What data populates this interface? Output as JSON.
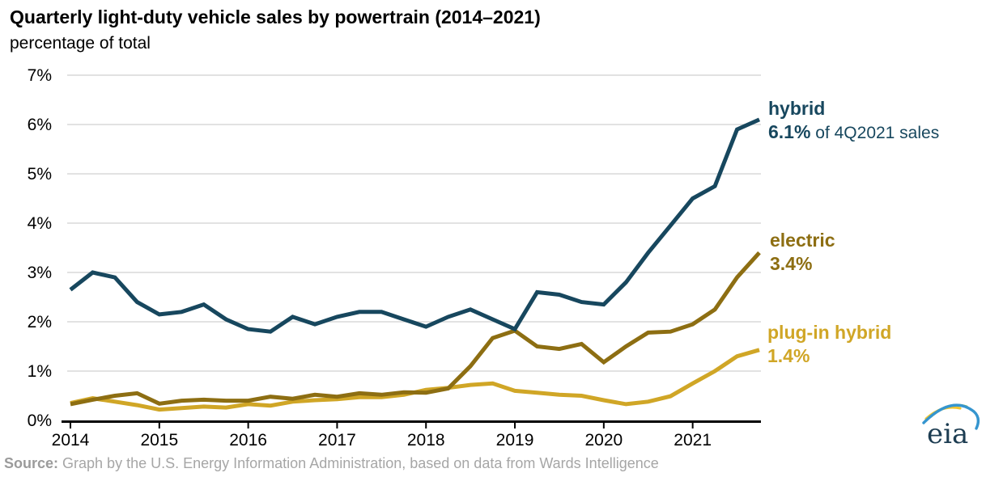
{
  "title": "Quarterly light-duty vehicle sales by powertrain (2014–2021)",
  "subtitle": "percentage of total",
  "source": {
    "label": "Source:",
    "text": " Graph by the U.S. Energy Information Administration, based on data from Wards Intelligence"
  },
  "logo": {
    "text": "eia"
  },
  "colors": {
    "hybrid": "#17475e",
    "electric": "#8d6e12",
    "plugin_hybrid": "#d0a626",
    "gridline": "#d9d9d9",
    "axis": "#000000",
    "source_text": "#a6a6a6"
  },
  "chart_data": {
    "type": "line",
    "title": "Quarterly light-duty vehicle sales by powertrain (2014–2021)",
    "ylabel": "percentage of total",
    "ylim": [
      0,
      7
    ],
    "grid": "horizontal",
    "legend_position": "right-of-lines",
    "x_unit": "quarter",
    "years": [
      "2014",
      "2015",
      "2016",
      "2017",
      "2018",
      "2019",
      "2020",
      "2021"
    ],
    "y_ticks": [
      "0%",
      "1%",
      "2%",
      "3%",
      "4%",
      "5%",
      "6%",
      "7%"
    ],
    "series": [
      {
        "name": "hybrid",
        "color": "#17475e",
        "annotation": {
          "name": "hybrid",
          "value": "6.1%",
          "suffix": " of 4Q2021 sales"
        },
        "values": [
          2.65,
          3.0,
          2.9,
          2.4,
          2.15,
          2.2,
          2.35,
          2.05,
          1.85,
          1.8,
          2.1,
          1.95,
          2.1,
          2.2,
          2.2,
          2.05,
          1.9,
          2.1,
          2.25,
          2.05,
          1.85,
          2.6,
          2.55,
          2.4,
          2.35,
          2.8,
          3.4,
          3.95,
          4.5,
          4.75,
          5.9,
          6.1
        ]
      },
      {
        "name": "electric",
        "color": "#8d6e12",
        "annotation": {
          "name": "electric",
          "value": "3.4%",
          "suffix": ""
        },
        "values": [
          0.33,
          0.42,
          0.5,
          0.55,
          0.34,
          0.4,
          0.42,
          0.4,
          0.4,
          0.48,
          0.44,
          0.52,
          0.48,
          0.55,
          0.52,
          0.57,
          0.56,
          0.65,
          1.1,
          1.67,
          1.82,
          1.5,
          1.45,
          1.55,
          1.18,
          1.5,
          1.78,
          1.8,
          1.95,
          2.25,
          2.9,
          3.4
        ]
      },
      {
        "name": "plug-in hybrid",
        "color": "#d0a626",
        "annotation": {
          "name": "plug-in hybrid",
          "value": "1.4%",
          "suffix": ""
        },
        "values": [
          0.35,
          0.45,
          0.38,
          0.31,
          0.22,
          0.25,
          0.28,
          0.26,
          0.33,
          0.3,
          0.38,
          0.41,
          0.43,
          0.47,
          0.47,
          0.52,
          0.62,
          0.66,
          0.72,
          0.75,
          0.6,
          0.56,
          0.52,
          0.5,
          0.41,
          0.33,
          0.38,
          0.49,
          0.75,
          1.0,
          1.3,
          1.43
        ]
      }
    ]
  }
}
